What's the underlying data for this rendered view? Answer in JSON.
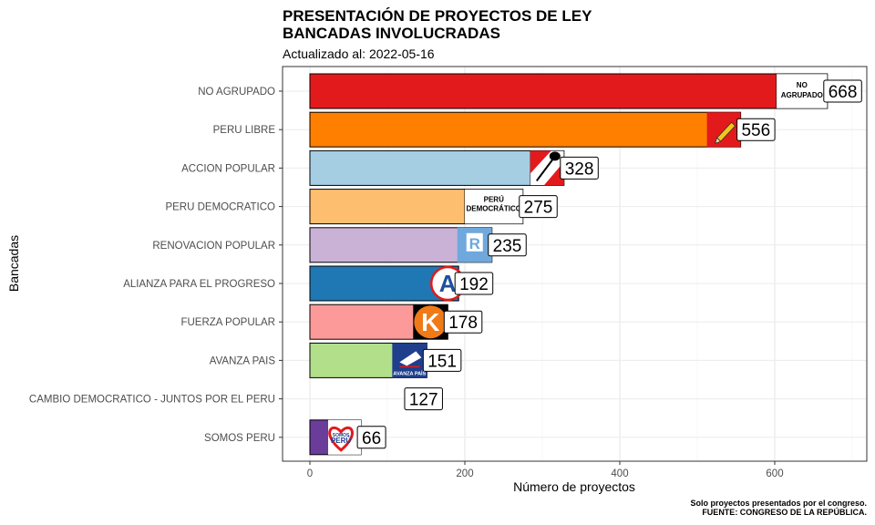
{
  "title_line1": "PRESENTACIÓN DE PROYECTOS DE LEY",
  "title_line2": "BANCADAS INVOLUCRADAS",
  "subtitle": "Actualizado al: 2022-05-16",
  "caption_line1": "Solo proyectos presentados por el congreso.",
  "caption_line2": "FUENTE: CONGRESO DE LA REPÚBLICA.",
  "chart_data": {
    "type": "bar",
    "orientation": "horizontal",
    "title": "PRESENTACIÓN DE PROYECTOS DE LEY BANCADAS INVOLUCRADAS",
    "xlabel": "Número de proyectos",
    "ylabel": "Bancadas",
    "xlim": [
      0,
      700
    ],
    "xticks": [
      0,
      200,
      400,
      600
    ],
    "grid": true,
    "categories": [
      "NO AGRUPADO",
      "PERU LIBRE",
      "ACCION POPULAR",
      "PERU DEMOCRATICO",
      "RENOVACION POPULAR",
      "ALIANZA PARA EL PROGRESO",
      "FUERZA POPULAR",
      "AVANZA PAIS",
      "CAMBIO DEMOCRATICO - JUNTOS POR EL PERU",
      "SOMOS PERU"
    ],
    "values": [
      668,
      556,
      328,
      275,
      235,
      192,
      178,
      151,
      127,
      66
    ],
    "colors": [
      "#E31A1C",
      "#FF7F00",
      "#A6CEE3",
      "#FDBF6F",
      "#CAB2D6",
      "#1F78B4",
      "#FB9A99",
      "#B2DF8A",
      "#FFFFFF",
      "#6A3D9A"
    ],
    "bar_visible": [
      true,
      true,
      true,
      true,
      true,
      true,
      true,
      true,
      false,
      true
    ],
    "logo_text": [
      "NO AGRUPADO",
      "",
      "",
      "PERÚ DEMOCRÁTICO",
      "R",
      "A",
      "K",
      "AVANZA PAÍS",
      "",
      "SOMOS PERÚ"
    ]
  }
}
